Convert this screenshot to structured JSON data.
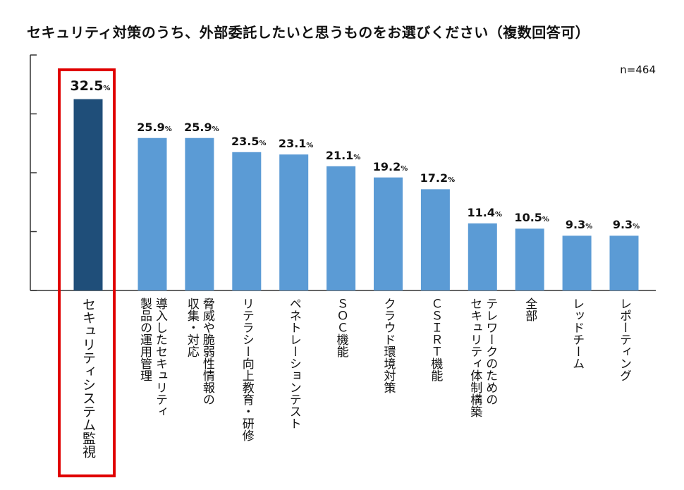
{
  "chart_data": {
    "type": "bar",
    "title": "セキュリティ対策のうち、外部委託したいと思うものをお選びください（複数回答可）",
    "sample_size": "n=464",
    "unit": "%",
    "categories": [
      [
        "セキュリティシステム監視"
      ],
      [
        "導入したセキュリティ",
        "製品の運用管理"
      ],
      [
        "脅威や脆弱性情報の",
        "収集・対応"
      ],
      [
        "リテラシー向上教育・研修"
      ],
      [
        "ペネトレーションテスト"
      ],
      [
        "ＳＯＣ機能"
      ],
      [
        "クラウド環境対策"
      ],
      [
        "ＣＳＩＲＴ機能"
      ],
      [
        "テレワークのための",
        "セキュリティ体制構築"
      ],
      [
        "全部"
      ],
      [
        "レッドチーム"
      ],
      [
        "レポーティング"
      ]
    ],
    "values": [
      32.5,
      25.9,
      25.9,
      23.5,
      23.1,
      21.1,
      19.2,
      17.2,
      11.4,
      10.5,
      9.3,
      9.3
    ],
    "value_labels": [
      "32.5",
      "25.9",
      "25.9",
      "23.5",
      "23.1",
      "21.1",
      "19.2",
      "17.2",
      "11.4",
      "10.5",
      "9.3",
      "9.3"
    ],
    "highlighted_index": 0,
    "ylim": [
      0,
      40
    ],
    "y_ticks": [
      0,
      10,
      20,
      30,
      40
    ],
    "y_tick_labels_shown": false,
    "grid": false,
    "colors": {
      "highlight_bar": "#1f4e79",
      "bar": "#5b9bd5",
      "highlight_box": "#e00000",
      "axis": "#333333"
    }
  }
}
